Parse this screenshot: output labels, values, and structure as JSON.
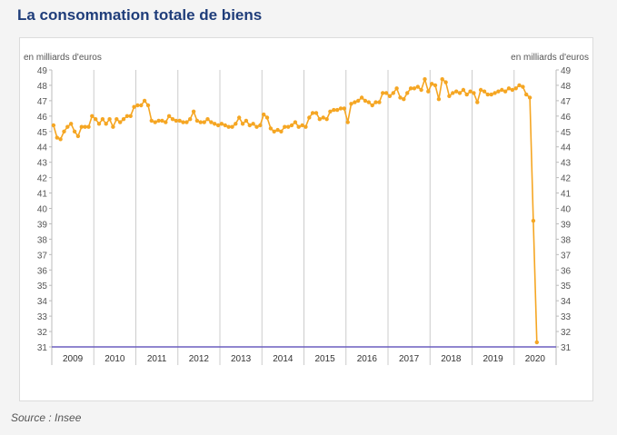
{
  "page": {
    "title": "La consommation totale de biens",
    "source": "Source : Insee"
  },
  "colors": {
    "title": "#1f3d7a",
    "series": "#f5a623",
    "baseline": "#6b5fbf",
    "grid": "#cccccc"
  },
  "chart_data": {
    "type": "line",
    "title": "La consommation totale de biens",
    "ylabel_left": "en milliards d'euros",
    "ylabel_right": "en milliards d'euros",
    "ylim": [
      31,
      49
    ],
    "yticks": [
      31,
      32,
      33,
      34,
      35,
      36,
      37,
      38,
      39,
      40,
      41,
      42,
      43,
      44,
      45,
      46,
      47,
      48,
      49
    ],
    "years": [
      "2009",
      "2010",
      "2011",
      "2012",
      "2013",
      "2014",
      "2015",
      "2016",
      "2017",
      "2018",
      "2019",
      "2020"
    ],
    "x_start": "2009-01",
    "frequency": "monthly",
    "grid": "vertical lines at year boundaries",
    "series": [
      {
        "values": [
          45.4,
          44.6,
          44.5,
          45.0,
          45.3,
          45.5,
          45.0,
          44.7,
          45.3,
          45.3,
          45.3,
          46.0,
          45.8,
          45.5,
          45.8,
          45.5,
          45.8,
          45.3,
          45.8,
          45.6,
          45.8,
          46.0,
          46.0,
          46.6,
          46.7,
          46.7,
          47.0,
          46.7,
          45.7,
          45.6,
          45.7,
          45.7,
          45.6,
          46.0,
          45.8,
          45.7,
          45.7,
          45.6,
          45.6,
          45.8,
          46.3,
          45.7,
          45.6,
          45.6,
          45.8,
          45.6,
          45.5,
          45.4,
          45.5,
          45.4,
          45.3,
          45.3,
          45.5,
          45.9,
          45.5,
          45.7,
          45.4,
          45.5,
          45.3,
          45.4,
          46.1,
          45.9,
          45.2,
          45.0,
          45.1,
          45.0,
          45.3,
          45.3,
          45.4,
          45.6,
          45.3,
          45.4,
          45.3,
          45.9,
          46.2,
          46.2,
          45.8,
          45.9,
          45.8,
          46.3,
          46.4,
          46.4,
          46.5,
          46.5,
          45.6,
          46.8,
          46.9,
          47.0,
          47.2,
          47.0,
          46.9,
          46.7,
          46.9,
          46.9,
          47.5,
          47.5,
          47.3,
          47.5,
          47.8,
          47.2,
          47.1,
          47.5,
          47.8,
          47.8,
          47.9,
          47.7,
          48.4,
          47.6,
          48.1,
          48.0,
          47.1,
          48.4,
          48.2,
          47.3,
          47.5,
          47.6,
          47.5,
          47.7,
          47.4,
          47.6,
          47.5,
          46.9,
          47.7,
          47.6,
          47.4,
          47.4,
          47.5,
          47.6,
          47.7,
          47.6,
          47.8,
          47.7,
          47.8,
          48.0,
          47.9,
          47.4,
          47.2,
          39.2,
          31.3
        ]
      }
    ]
  }
}
